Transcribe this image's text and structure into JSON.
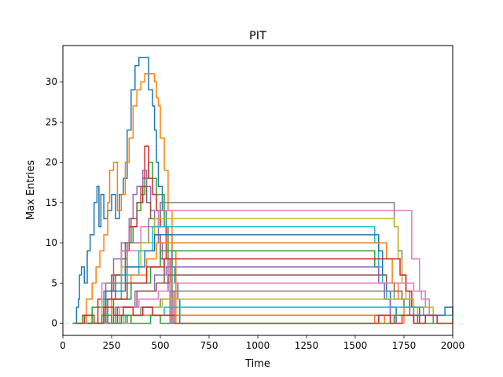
{
  "chart_data": {
    "type": "line",
    "title": "PIT",
    "xlabel": "Time",
    "ylabel": "Max Entries",
    "xlim": [
      0,
      2000
    ],
    "ylim": [
      -1.5,
      34.5
    ],
    "xticks": [
      0,
      250,
      500,
      750,
      1000,
      1250,
      1500,
      1750,
      2000
    ],
    "yticks": [
      0,
      5,
      10,
      15,
      20,
      25,
      30
    ],
    "grid": false,
    "legend": "none",
    "step": true,
    "palette": [
      "#1f77b4",
      "#ff7f0e",
      "#2ca02c",
      "#d62728",
      "#9467bd",
      "#8c564b",
      "#e377c2",
      "#7f7f7f",
      "#bcbd22",
      "#17becf"
    ],
    "series": [
      {
        "x": [
          50,
          70,
          80,
          85,
          95,
          110,
          125,
          140,
          160,
          175,
          185,
          195,
          210,
          230,
          250,
          270,
          290,
          310,
          330,
          350,
          370,
          390,
          400,
          440,
          460,
          470,
          480,
          490,
          510,
          530,
          560,
          575,
          590,
          600
        ],
        "y": [
          0,
          2,
          3,
          6,
          7,
          5,
          9,
          11,
          15,
          17,
          12,
          16,
          13,
          14,
          16,
          13,
          16,
          18,
          24,
          29,
          32,
          33,
          33,
          29,
          27,
          24,
          20,
          17,
          14,
          11,
          7,
          5,
          3,
          0
        ]
      },
      {
        "x": [
          90,
          120,
          150,
          170,
          190,
          210,
          230,
          240,
          260,
          280,
          300,
          320,
          340,
          360,
          380,
          400,
          420,
          450,
          470,
          480,
          490,
          500,
          520,
          540,
          560,
          580
        ],
        "y": [
          0,
          3,
          5,
          7,
          9,
          11,
          15,
          19,
          20,
          14,
          16,
          20,
          23,
          27,
          29,
          30,
          31,
          31,
          30,
          28,
          27,
          23,
          19,
          14,
          9,
          0
        ]
      },
      {
        "x": [
          60,
          150,
          220,
          260,
          300,
          330,
          360,
          380,
          400,
          420,
          440,
          460,
          480,
          520,
          540,
          560
        ],
        "y": [
          0,
          2,
          4,
          6,
          8,
          10,
          12,
          14,
          16,
          18,
          20,
          18,
          16,
          12,
          8,
          0
        ]
      },
      {
        "x": [
          100,
          180,
          250,
          300,
          340,
          380,
          410,
          420,
          440,
          460,
          480,
          500,
          530,
          550,
          570
        ],
        "y": [
          0,
          3,
          6,
          9,
          12,
          15,
          18,
          22,
          18,
          16,
          14,
          12,
          8,
          4,
          0
        ]
      },
      {
        "x": [
          120,
          210,
          260,
          300,
          340,
          360,
          380,
          410,
          430,
          450,
          470,
          490,
          510,
          540,
          560
        ],
        "y": [
          0,
          4,
          8,
          10,
          13,
          16,
          17,
          19,
          17,
          14,
          13,
          10,
          8,
          4,
          0
        ]
      },
      {
        "x": [
          140,
          220,
          270,
          320,
          350,
          380,
          400,
          430,
          450,
          470,
          500,
          520,
          550
        ],
        "y": [
          0,
          3,
          6,
          10,
          13,
          15,
          17,
          15,
          13,
          11,
          8,
          5,
          0
        ]
      },
      {
        "x": [
          80,
          200,
          300,
          400,
          490,
          1750,
          1790,
          1830,
          1860,
          1880,
          1900
        ],
        "y": [
          0,
          5,
          9,
          12,
          14,
          14,
          8,
          4,
          2,
          1,
          0
        ]
      },
      {
        "x": [
          90,
          220,
          330,
          440,
          500,
          1660,
          1700,
          1720,
          1740,
          1760,
          1780,
          1800
        ],
        "y": [
          0,
          5,
          10,
          13,
          15,
          15,
          12,
          9,
          6,
          4,
          2,
          0
        ]
      },
      {
        "x": [
          70,
          200,
          300,
          400,
          470,
          1650,
          1700,
          1720,
          1740,
          1760,
          1790,
          1820,
          1860
        ],
        "y": [
          0,
          3,
          7,
          10,
          13,
          13,
          12,
          8,
          5,
          3,
          2,
          1,
          0
        ]
      },
      {
        "x": [
          110,
          210,
          300,
          390,
          460,
          1580,
          1600,
          1620,
          1640,
          1660,
          1680,
          1700
        ],
        "y": [
          0,
          3,
          6,
          9,
          12,
          12,
          10,
          7,
          5,
          3,
          1,
          0
        ]
      },
      {
        "x": [
          120,
          220,
          320,
          420,
          470,
          1600,
          1620,
          1640,
          1660,
          1680,
          1710
        ],
        "y": [
          0,
          4,
          7,
          9,
          11,
          11,
          9,
          6,
          4,
          2,
          0
        ]
      },
      {
        "x": [
          150,
          250,
          350,
          430,
          480,
          1620,
          1660,
          1690,
          1720,
          1750
        ],
        "y": [
          0,
          3,
          6,
          8,
          10,
          10,
          8,
          5,
          3,
          0
        ]
      },
      {
        "x": [
          160,
          260,
          350,
          450,
          500,
          1580,
          1600,
          1620,
          1650,
          1680
        ],
        "y": [
          0,
          3,
          5,
          7,
          9,
          9,
          7,
          5,
          3,
          0
        ]
      },
      {
        "x": [
          130,
          230,
          330,
          430,
          520,
          1700,
          1730,
          1760,
          1790,
          1830
        ],
        "y": [
          0,
          3,
          5,
          7,
          8,
          8,
          6,
          4,
          2,
          0
        ]
      },
      {
        "x": [
          170,
          270,
          370,
          470,
          530,
          1590,
          1620,
          1650,
          1680,
          1710
        ],
        "y": [
          0,
          2,
          4,
          6,
          7,
          7,
          5,
          3,
          1,
          0
        ]
      },
      {
        "x": [
          180,
          280,
          380,
          480,
          540,
          1630,
          1660,
          1700,
          1740,
          1780,
          1820
        ],
        "y": [
          0,
          2,
          4,
          5,
          6,
          6,
          5,
          4,
          3,
          1,
          0
        ]
      },
      {
        "x": [
          190,
          290,
          390,
          490,
          550,
          1760,
          1800,
          1840,
          1880,
          1920
        ],
        "y": [
          0,
          2,
          3,
          4,
          5,
          5,
          4,
          3,
          1,
          0
        ]
      },
      {
        "x": [
          200,
          300,
          400,
          500,
          560,
          1650,
          1700,
          1750,
          1800,
          1850,
          1900
        ],
        "y": [
          0,
          1,
          2,
          3,
          4,
          4,
          3,
          2,
          1,
          1,
          0
        ]
      },
      {
        "x": [
          210,
          310,
          410,
          510,
          570,
          1700,
          1800,
          1900,
          1960,
          2000
        ],
        "y": [
          0,
          1,
          2,
          3,
          3,
          3,
          2,
          1,
          1,
          0
        ]
      },
      {
        "x": [
          220,
          320,
          420,
          520,
          580,
          1750,
          1850,
          1950,
          2000
        ],
        "y": [
          0,
          1,
          1,
          2,
          2,
          2,
          1,
          1,
          1
        ]
      },
      {
        "x": [
          230,
          330,
          430,
          530,
          570,
          1800,
          1900,
          1960,
          2000
        ],
        "y": [
          0,
          1,
          1,
          1,
          1,
          1,
          1,
          2,
          1
        ]
      },
      {
        "x": [
          240,
          350,
          450,
          560,
          1560,
          1580,
          1600,
          1650,
          1700,
          1750
        ],
        "y": [
          0,
          1,
          1,
          1,
          1,
          1,
          0,
          1,
          0,
          0
        ]
      },
      {
        "x": [
          50,
          100,
          150,
          200,
          250,
          300,
          350,
          400,
          450,
          500,
          600,
          1000,
          1500,
          1600,
          1700,
          1800,
          1900,
          2000
        ],
        "y": [
          0,
          1,
          0,
          1,
          0,
          1,
          0,
          0,
          1,
          0,
          0,
          0,
          0,
          0,
          1,
          0,
          0,
          0
        ]
      },
      {
        "x": [
          60,
          110,
          160,
          210,
          260,
          310,
          360,
          410,
          460,
          510,
          570,
          1000,
          1560,
          1620,
          1680,
          1740,
          1800,
          1860,
          1920,
          2000
        ],
        "y": [
          0,
          1,
          0,
          2,
          1,
          2,
          1,
          2,
          1,
          1,
          0,
          0,
          0,
          1,
          0,
          1,
          0,
          1,
          0,
          0
        ]
      }
    ]
  }
}
